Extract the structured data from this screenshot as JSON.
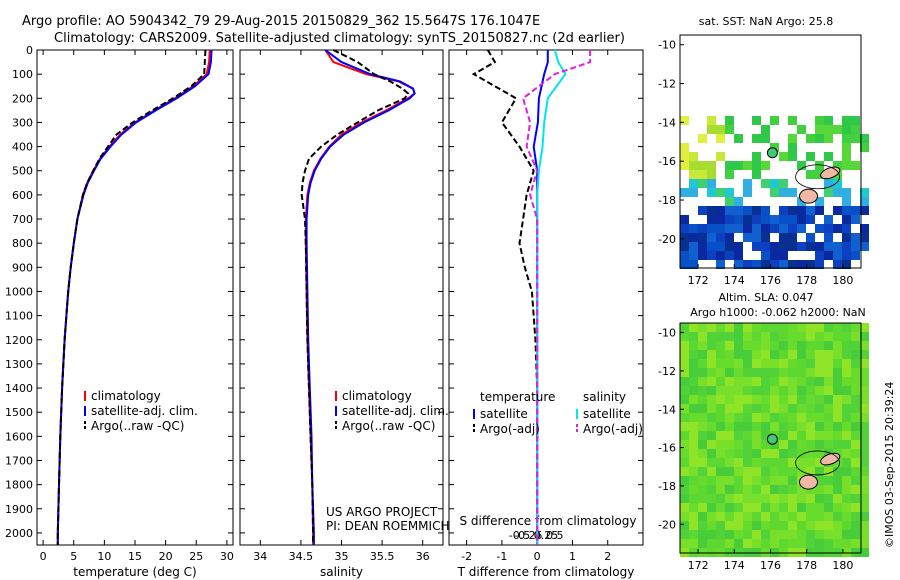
{
  "header": {
    "line1": "Argo profile: AO 5904342_79 29-Aug-2015 20150829_362 15.5647S 176.1047E",
    "line2": "Climatology: CARS2009. Satellite-adjusted climatology: synTS_20150827.nc (2d earlier)"
  },
  "colors": {
    "climatology": "#ff0000",
    "satellite": "#0000ff",
    "argo": "#000000",
    "sal_satellite": "#00e5ee",
    "sal_argo": "#e020e0"
  },
  "depth_axis": {
    "ylim": [
      0,
      2050
    ],
    "ticks": [
      "0",
      "100",
      "200",
      "300",
      "400",
      "500",
      "600",
      "700",
      "800",
      "900",
      "1000",
      "1100",
      "1200",
      "1300",
      "1400",
      "1500",
      "1600",
      "1700",
      "1800",
      "1900",
      "2000"
    ]
  },
  "chart_data": [
    {
      "type": "line",
      "xlabel": "temperature (deg C)",
      "xlim": [
        -1,
        31
      ],
      "xticks": [
        "0",
        "5",
        "10",
        "15",
        "20",
        "25",
        "30"
      ],
      "legend": [
        "climatology",
        "satellite-adj. clim.",
        "Argo(..raw -QC)"
      ],
      "depth": [
        0,
        50,
        100,
        150,
        200,
        250,
        300,
        350,
        400,
        450,
        500,
        550,
        600,
        700,
        800,
        900,
        1000,
        1200,
        1400,
        1600,
        1800,
        2000,
        2050
      ],
      "series": [
        {
          "name": "climatology",
          "values": [
            27.2,
            27.1,
            26.7,
            24.5,
            21.5,
            18.2,
            15.0,
            12.6,
            10.8,
            9.3,
            8.2,
            7.2,
            6.5,
            5.6,
            5.0,
            4.5,
            4.1,
            3.5,
            3.1,
            2.8,
            2.6,
            2.4,
            2.4
          ]
        },
        {
          "name": "satellite-adj. clim.",
          "values": [
            27.5,
            27.4,
            27.0,
            24.8,
            21.8,
            18.4,
            15.2,
            12.8,
            11.0,
            9.4,
            8.3,
            7.3,
            6.6,
            5.6,
            5.0,
            4.5,
            4.1,
            3.5,
            3.1,
            2.8,
            2.6,
            2.4,
            2.4
          ]
        },
        {
          "name": "Argo(..raw -QC)",
          "values": [
            26.5,
            26.4,
            26.3,
            24.2,
            21.2,
            17.8,
            14.6,
            12.0,
            10.6,
            9.2,
            8.2,
            7.2,
            6.5,
            5.6,
            5.0,
            4.5,
            4.1,
            3.5,
            3.1,
            2.8,
            2.6,
            2.4,
            2.4
          ]
        }
      ]
    },
    {
      "type": "line",
      "xlabel": "salinity",
      "xlim": [
        33.75,
        36.25
      ],
      "xticks": [
        "34",
        "34.5",
        "35",
        "35.5",
        "36"
      ],
      "legend": [
        "climatology",
        "satellite-adj. clim.",
        "Argo(..raw -QC)"
      ],
      "depth": [
        0,
        50,
        100,
        130,
        160,
        180,
        200,
        250,
        300,
        350,
        400,
        450,
        500,
        550,
        600,
        700,
        800,
        1000,
        1200,
        1400,
        1600,
        1800,
        2000,
        2050
      ],
      "series": [
        {
          "name": "climatology",
          "values": [
            34.8,
            34.9,
            35.3,
            35.7,
            35.88,
            35.9,
            35.82,
            35.55,
            35.25,
            35.0,
            34.85,
            34.74,
            34.66,
            34.61,
            34.58,
            34.56,
            34.56,
            34.57,
            34.58,
            34.6,
            34.62,
            34.64,
            34.65,
            34.65
          ]
        },
        {
          "name": "satellite-adj. clim.",
          "values": [
            34.8,
            35.0,
            35.35,
            35.72,
            35.88,
            35.9,
            35.84,
            35.58,
            35.28,
            35.03,
            34.86,
            34.75,
            34.67,
            34.62,
            34.59,
            34.57,
            34.57,
            34.58,
            34.59,
            34.61,
            34.63,
            34.64,
            34.66,
            34.66
          ]
        },
        {
          "name": "Argo(..raw -QC)",
          "values": [
            34.9,
            35.2,
            35.4,
            35.6,
            35.75,
            35.82,
            35.78,
            35.45,
            35.2,
            34.95,
            34.75,
            34.6,
            34.55,
            34.52,
            34.51,
            34.55,
            34.56,
            34.57,
            34.58,
            34.6,
            34.62,
            34.64,
            34.65,
            34.65
          ]
        }
      ]
    },
    {
      "type": "line",
      "xlabel": "T difference from climatology",
      "xlabel2": "S difference from climatology",
      "xlim": [
        -2.5,
        3
      ],
      "xticks": [
        "-2",
        "-1",
        "0",
        "1",
        "2"
      ],
      "xticks2": [
        "-0.5",
        "-0.25",
        "0",
        "0.25",
        "0.5"
      ],
      "legend_headers": [
        "temperature",
        "salinity"
      ],
      "legend": [
        "satellite",
        "Argo(-adj)",
        "satellite",
        "Argo(-adj)"
      ],
      "depth": [
        0,
        50,
        100,
        200,
        300,
        400,
        500,
        600,
        700,
        800,
        900,
        1000,
        1200,
        1400,
        1600,
        1800,
        2000,
        2050
      ],
      "series": [
        {
          "name": "satellite",
          "values": [
            0.3,
            0.3,
            0.2,
            0.05,
            0.02,
            -0.1,
            0.0,
            0.0,
            0.0,
            0.0,
            0.0,
            0.0,
            0.0,
            0.0,
            0.0,
            0.0,
            0.0,
            0.0
          ]
        },
        {
          "name": "Argo(-adj)",
          "values": [
            -1.4,
            -1.2,
            -1.8,
            -0.6,
            -1.0,
            -0.5,
            -0.1,
            -0.3,
            -0.4,
            -0.5,
            -0.35,
            -0.15,
            -0.05,
            0.0,
            0.0,
            0.0,
            0.0,
            0.0
          ]
        },
        {
          "name": "satellite",
          "values": [
            0.5,
            0.6,
            0.8,
            0.3,
            0.2,
            0.15,
            0.05,
            0.0,
            0.0,
            0.0,
            0.0,
            0.0,
            0.0,
            0.0,
            0.0,
            0.0,
            0.0,
            0.0
          ]
        },
        {
          "name": "Argo(-adj)",
          "values": [
            1.5,
            1.5,
            0.5,
            -0.4,
            -0.2,
            -0.3,
            0.0,
            -0.2,
            0.0,
            0.0,
            0.0,
            0.0,
            0.0,
            0.0,
            0.0,
            0.0,
            0.0,
            0.0
          ]
        }
      ]
    },
    {
      "type": "heatmap",
      "title": "sat. SST: NaN Argo: 25.8",
      "xlim": [
        171,
        181
      ],
      "ylim": [
        -21.5,
        -9.5
      ],
      "xticks": [
        "172",
        "174",
        "176",
        "178",
        "180"
      ],
      "yticks": [
        "-10",
        "-12",
        "-14",
        "-16",
        "-18",
        "-20"
      ],
      "profile_location": [
        176.1047,
        -15.5647
      ]
    },
    {
      "type": "heatmap",
      "title": "Altim. SLA: 0.047",
      "subtitle": "Argo h1000: -0.062 h2000: NaN",
      "xlim": [
        171,
        181
      ],
      "ylim": [
        -21.5,
        -9.5
      ],
      "xticks": [
        "172",
        "174",
        "176",
        "178",
        "180"
      ],
      "yticks": [
        "-10",
        "-12",
        "-14",
        "-16",
        "-18",
        "-20"
      ],
      "profile_location": [
        176.1047,
        -15.5647
      ]
    }
  ],
  "annotations": {
    "project": "US ARGO PROJECT",
    "pi": "PI: DEAN ROEMMICH",
    "stamp": "©IMOS 03-Sep-2015 20:39:24"
  }
}
